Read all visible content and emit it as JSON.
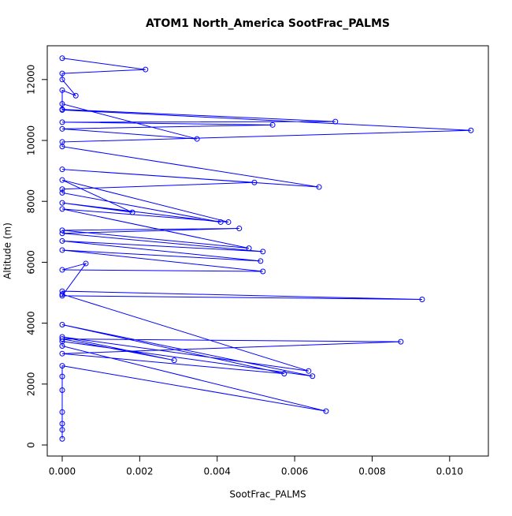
{
  "chart_data": {
    "type": "line",
    "title": "ATOM1 North_America SootFrac_PALMS",
    "x_label": "SootFrac_PALMS",
    "y_label": "Altitude (m)",
    "xlim": [
      -0.000386,
      0.011
    ],
    "ylim": [
      -363,
      13109
    ],
    "xticks": [
      {
        "value": 0,
        "label": "0.000"
      },
      {
        "value": 0.002,
        "label": "0.002"
      },
      {
        "value": 0.004,
        "label": "0.004"
      },
      {
        "value": 0.006,
        "label": "0.006"
      },
      {
        "value": 0.008,
        "label": "0.008"
      },
      {
        "value": 0.01,
        "label": "0.010"
      }
    ],
    "yticks": [
      0,
      2000,
      4000,
      6000,
      8000,
      10000,
      12000
    ],
    "series": [
      {
        "name": "SootFrac_PALMS",
        "color": "#0000ff",
        "x": [
          0,
          0.00215,
          0,
          0,
          0.00035,
          0,
          0,
          0.00705,
          0,
          0.00543,
          0,
          0.00348,
          0,
          0,
          0.01055,
          0,
          0,
          0.00663,
          0,
          0.00496,
          0,
          0,
          0.00409,
          0,
          0.00181,
          0,
          0.00429,
          0,
          0.00482,
          0,
          0.00457,
          0,
          0.00518,
          0,
          0.00512,
          0,
          0.00518,
          0,
          0.00061,
          0,
          0.00929,
          0,
          0,
          0.00636,
          0,
          0.00289,
          0,
          0.00874,
          0,
          0.00573,
          0,
          0.00646,
          0,
          0,
          0.00681,
          0,
          0,
          0,
          0,
          0,
          0,
          0
        ],
        "values": [
          12700,
          12330,
          12200,
          12000,
          11470,
          11650,
          11020,
          10620,
          10600,
          10510,
          10380,
          10050,
          11200,
          11000,
          10330,
          9950,
          9800,
          8470,
          9050,
          8620,
          8400,
          8280,
          7320,
          7950,
          7640,
          8700,
          7320,
          7750,
          6460,
          7050,
          7110,
          6950,
          6350,
          6700,
          6040,
          6400,
          5700,
          5750,
          5960,
          4900,
          4780,
          5050,
          4950,
          2430,
          3550,
          2780,
          3480,
          3390,
          3000,
          2340,
          3950,
          2260,
          3400,
          3250,
          1110,
          2600,
          2250,
          1800,
          1080,
          700,
          500,
          200
        ]
      }
    ]
  }
}
